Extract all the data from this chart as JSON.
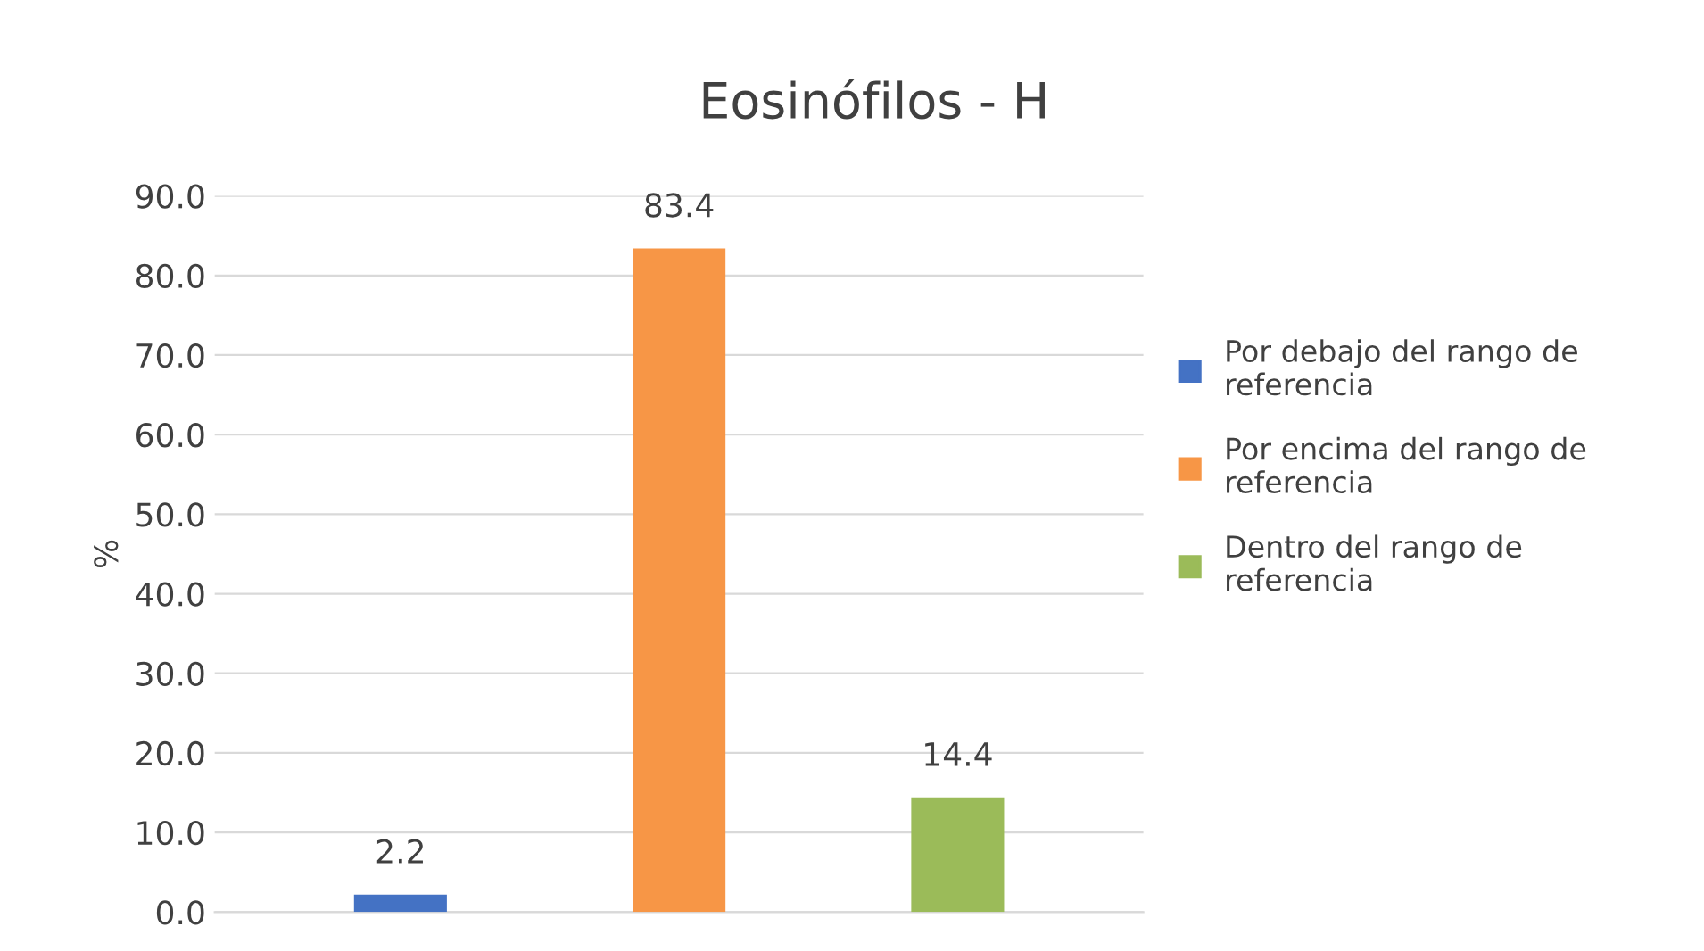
{
  "chart_data": {
    "type": "bar",
    "title": "Eosinófilos - H",
    "ylabel": "%",
    "categories": [
      null
    ],
    "series": [
      {
        "name": "Por debajo del rango de referencia",
        "color": "#4472c4",
        "values": [
          2.2
        ]
      },
      {
        "name": "Por encima del rango de referencia",
        "color": "#f79646",
        "values": [
          83.4
        ]
      },
      {
        "name": "Dentro del rango de referencia",
        "color": "#9bbb59",
        "values": [
          14.4
        ]
      }
    ],
    "ylim": [
      0,
      90
    ],
    "yticks": [
      {
        "value": 0,
        "label": "0.0"
      },
      {
        "value": 10,
        "label": "10.0"
      },
      {
        "value": 20,
        "label": "20.0"
      },
      {
        "value": 30,
        "label": "30.0"
      },
      {
        "value": 40,
        "label": "40.0"
      },
      {
        "value": 50,
        "label": "50.0"
      },
      {
        "value": 60,
        "label": "60.0"
      },
      {
        "value": 70,
        "label": "70.0"
      },
      {
        "value": 80,
        "label": "80.0"
      },
      {
        "value": 90,
        "label": "90.0"
      }
    ],
    "grid": "y",
    "legend": "right",
    "data_labels": true
  }
}
